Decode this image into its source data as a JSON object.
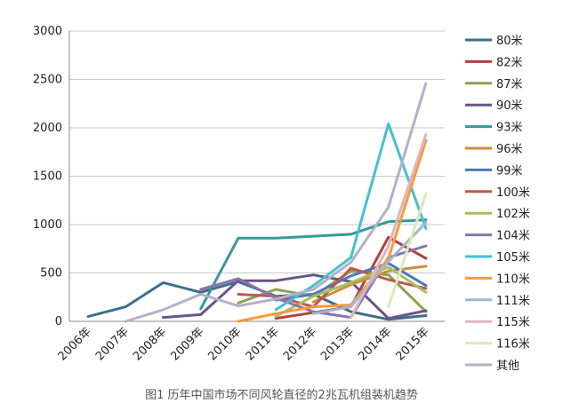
{
  "caption": "图1 历年中国市场不同风轮直径的2兆瓦机组装机趋势",
  "chart_data": {
    "type": "line",
    "categories": [
      "2006年",
      "2007年",
      "2008年",
      "2009年",
      "2010年",
      "2011年",
      "2012年",
      "2013年",
      "2014年",
      "2015年"
    ],
    "ylim": [
      0,
      3000
    ],
    "yticks": [
      0,
      500,
      1000,
      1500,
      2000,
      2500,
      3000
    ],
    "grid": "horizontal",
    "legend_position": "right",
    "series": [
      {
        "name": "80米",
        "color": "#3e6e8c",
        "values": [
          50,
          150,
          400,
          300,
          410,
          260,
          280,
          100,
          20,
          60
        ]
      },
      {
        "name": "82米",
        "color": "#b0413e",
        "values": [
          null,
          null,
          null,
          null,
          null,
          30,
          90,
          150,
          870,
          650
        ]
      },
      {
        "name": "87米",
        "color": "#8da24f",
        "values": [
          null,
          null,
          null,
          null,
          190,
          330,
          260,
          520,
          480,
          100
        ]
      },
      {
        "name": "90米",
        "color": "#6a538c",
        "values": [
          null,
          null,
          40,
          70,
          420,
          420,
          480,
          410,
          30,
          110
        ]
      },
      {
        "name": "93米",
        "color": "#36999a",
        "values": [
          null,
          null,
          null,
          130,
          860,
          860,
          880,
          900,
          1030,
          1050
        ]
      },
      {
        "name": "96米",
        "color": "#d08b3a",
        "values": [
          null,
          null,
          null,
          null,
          null,
          null,
          200,
          380,
          520,
          570
        ]
      },
      {
        "name": "99米",
        "color": "#4f79b7",
        "values": [
          null,
          null,
          null,
          null,
          null,
          220,
          280,
          470,
          600,
          370
        ]
      },
      {
        "name": "100米",
        "color": "#c05650",
        "values": [
          null,
          null,
          null,
          null,
          280,
          260,
          150,
          550,
          430,
          340
        ]
      },
      {
        "name": "102米",
        "color": "#a4c060",
        "values": [
          null,
          null,
          null,
          null,
          null,
          50,
          260,
          400,
          560,
          300
        ]
      },
      {
        "name": "104米",
        "color": "#8a73ad",
        "values": [
          null,
          null,
          null,
          330,
          440,
          240,
          100,
          40,
          660,
          780
        ]
      },
      {
        "name": "105米",
        "color": "#46bfd0",
        "values": [
          null,
          null,
          null,
          null,
          null,
          120,
          370,
          660,
          2040,
          960
        ]
      },
      {
        "name": "110米",
        "color": "#f59a3e",
        "values": [
          null,
          null,
          null,
          null,
          0,
          80,
          150,
          170,
          650,
          1870
        ]
      },
      {
        "name": "111米",
        "color": "#9fb6d3",
        "values": [
          null,
          null,
          null,
          null,
          null,
          null,
          80,
          150,
          620,
          1020
        ]
      },
      {
        "name": "115米",
        "color": "#e0b6b6",
        "values": [
          null,
          null,
          null,
          null,
          null,
          null,
          null,
          40,
          780,
          1930
        ]
      },
      {
        "name": "116米",
        "color": "#dde8b8",
        "values": [
          null,
          null,
          null,
          null,
          null,
          null,
          null,
          null,
          150,
          1320
        ]
      },
      {
        "name": "其他",
        "color": "#b2b1ca",
        "values": [
          null,
          0,
          120,
          280,
          160,
          230,
          330,
          610,
          1180,
          2460
        ]
      }
    ]
  }
}
